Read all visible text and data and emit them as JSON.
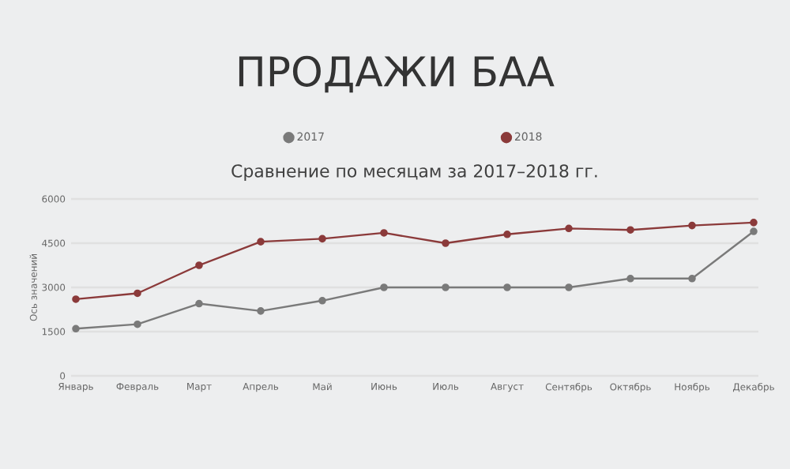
{
  "chart_data": {
    "type": "line",
    "title": "ПРОДАЖИ БАА",
    "subtitle": "Сравнение по месяцам за 2017–2018 гг.",
    "ylabel": "Ось значений",
    "categories": [
      "Январь",
      "Февраль",
      "Март",
      "Апрель",
      "Май",
      "Июнь",
      "Июль",
      "Август",
      "Сентябрь",
      "Октябрь",
      "Ноябрь",
      "Декабрь"
    ],
    "series": [
      {
        "name": "2017",
        "color": "#7a7a7a",
        "values": [
          1600,
          1750,
          2450,
          2200,
          2550,
          3000,
          3000,
          3000,
          3000,
          3300,
          3300,
          4900
        ]
      },
      {
        "name": "2018",
        "color": "#8b3a3a",
        "values": [
          2600,
          2800,
          3750,
          4550,
          4650,
          4850,
          4500,
          4800,
          5000,
          4950,
          5100,
          5200
        ]
      }
    ],
    "ylim": [
      0,
      6000
    ],
    "yticks": [
      0,
      1500,
      3000,
      4500,
      6000
    ],
    "grid": "y",
    "legend": "top",
    "marker": "circle",
    "line_style": "solid"
  }
}
